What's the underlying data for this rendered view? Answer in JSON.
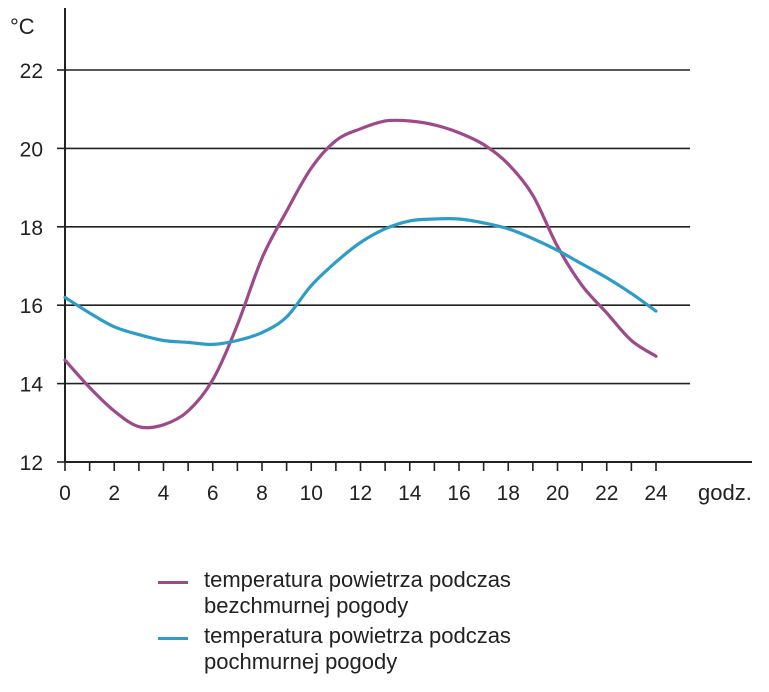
{
  "chart_data": {
    "type": "line",
    "y_unit": "°C",
    "x_unit": "godz.",
    "xlim": [
      0,
      24
    ],
    "ylim": [
      12,
      22
    ],
    "x_ticks": [
      0,
      2,
      4,
      6,
      8,
      10,
      12,
      14,
      16,
      18,
      20,
      22,
      24
    ],
    "y_ticks": [
      12,
      14,
      16,
      18,
      20,
      22
    ],
    "grid": "horizontal",
    "legend_position": "bottom",
    "series": [
      {
        "name": "temperatura powietrza podczas bezchmurnej pogody",
        "color": "#9c4a8a",
        "x": [
          0,
          1,
          2,
          3,
          4,
          5,
          6,
          7,
          8,
          9,
          10,
          11,
          12,
          13,
          14,
          15,
          16,
          17,
          18,
          19,
          20,
          21,
          22,
          23,
          24
        ],
        "y": [
          14.6,
          13.9,
          13.3,
          12.9,
          12.95,
          13.3,
          14.1,
          15.5,
          17.2,
          18.4,
          19.5,
          20.2,
          20.5,
          20.7,
          20.7,
          20.6,
          20.4,
          20.1,
          19.6,
          18.8,
          17.5,
          16.5,
          15.8,
          15.1,
          14.7
        ]
      },
      {
        "name": "temperatura powietrza podczas pochmurnej pogody",
        "color": "#2d9cc7",
        "x": [
          0,
          1,
          2,
          3,
          4,
          5,
          6,
          7,
          8,
          9,
          10,
          11,
          12,
          13,
          14,
          15,
          16,
          17,
          18,
          19,
          20,
          21,
          22,
          23,
          24
        ],
        "y": [
          16.2,
          15.8,
          15.45,
          15.25,
          15.1,
          15.05,
          15.0,
          15.1,
          15.3,
          15.7,
          16.5,
          17.1,
          17.6,
          17.95,
          18.15,
          18.2,
          18.2,
          18.1,
          17.95,
          17.7,
          17.4,
          17.05,
          16.7,
          16.3,
          15.85
        ]
      }
    ]
  }
}
